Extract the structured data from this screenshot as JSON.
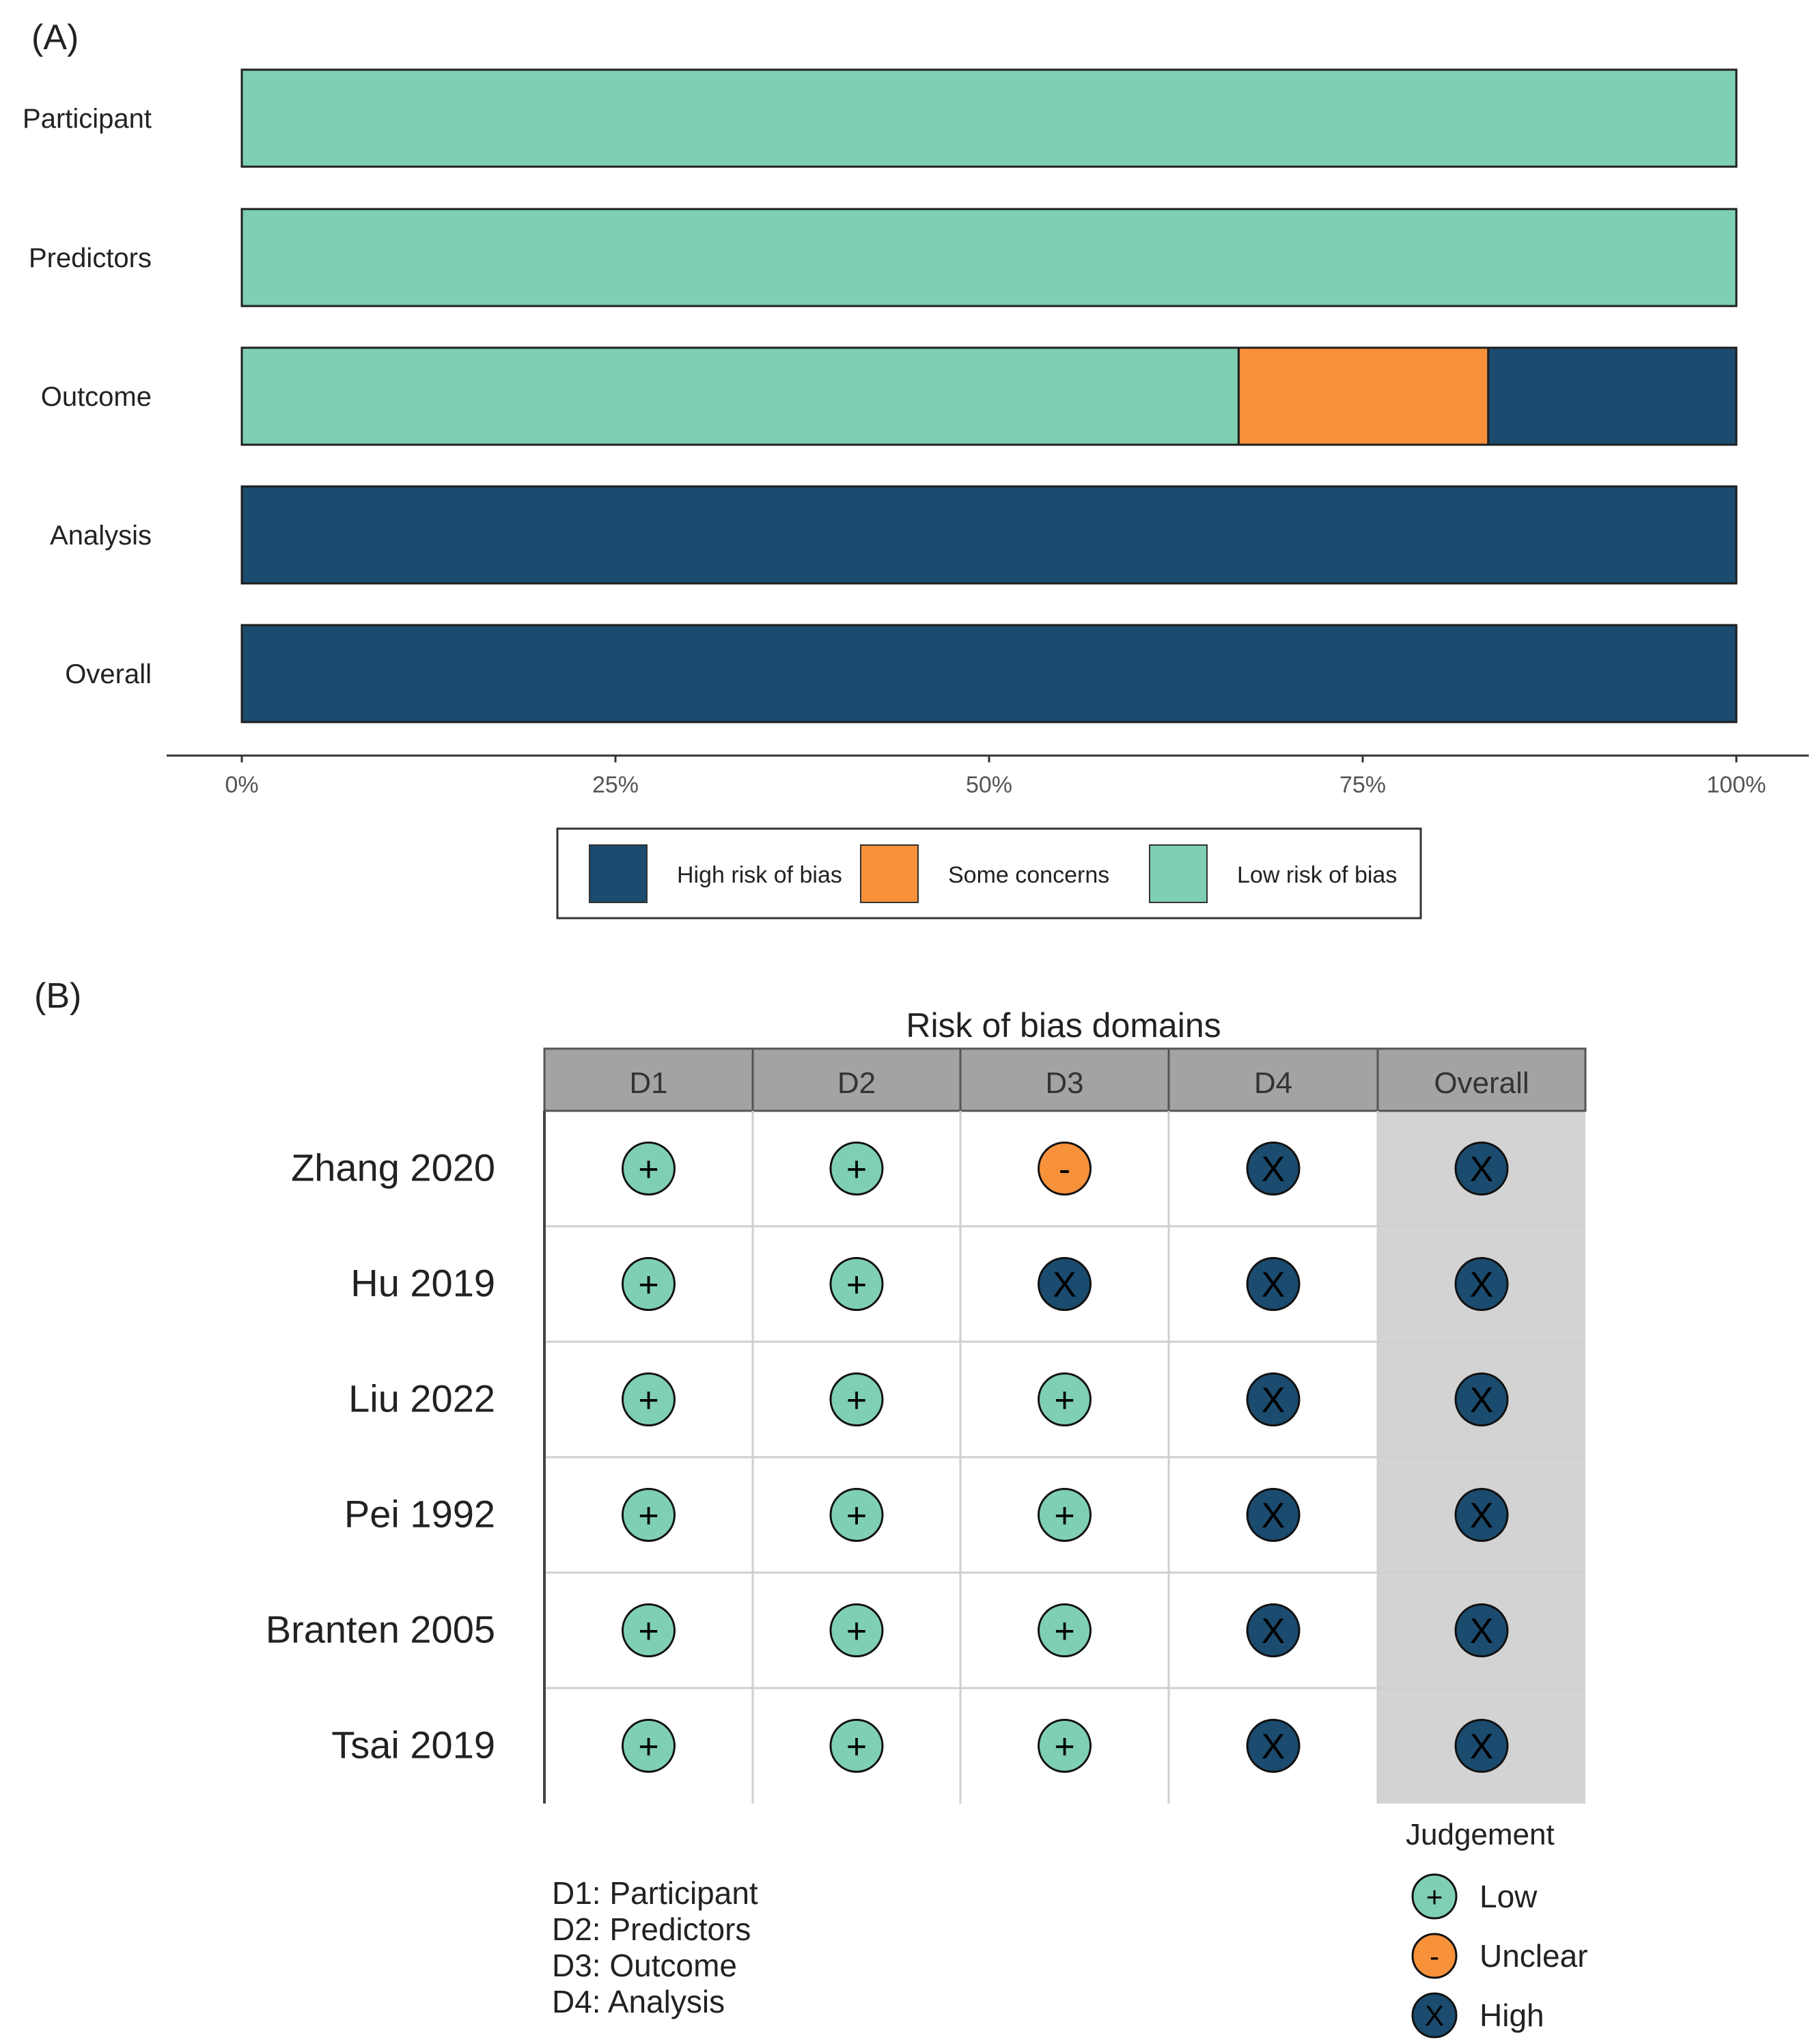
{
  "colors": {
    "high": "#1b4b6e",
    "concerns": "#f7913a",
    "low": "#7fcfb2",
    "header_bg": "#a3a3a3",
    "overall_bg": "#d3d3d3",
    "grid_line": "#cfcfcf",
    "text": "#222222"
  },
  "chart_data": [
    {
      "panel_label": "(A)",
      "type": "bar",
      "orientation": "horizontal",
      "stacked": true,
      "categories": [
        "Participant",
        "Predictors",
        "Outcome",
        "Analysis",
        "Overall"
      ],
      "series": [
        {
          "name": "Low risk of bias",
          "key": "low",
          "values": [
            100,
            100,
            66.7,
            0,
            0
          ]
        },
        {
          "name": "Some concerns",
          "key": "concerns",
          "values": [
            0,
            0,
            16.7,
            0,
            0
          ]
        },
        {
          "name": "High risk of bias",
          "key": "high",
          "values": [
            0,
            0,
            16.6,
            100,
            100
          ]
        }
      ],
      "xlim": [
        0,
        100
      ],
      "xticks": [
        "0%",
        "25%",
        "50%",
        "75%",
        "100%"
      ],
      "legend": {
        "position": "bottom",
        "items": [
          {
            "label": "High risk of bias",
            "key": "high"
          },
          {
            "label": "Some concerns",
            "key": "concerns"
          },
          {
            "label": "Low risk of bias",
            "key": "low"
          }
        ]
      }
    },
    {
      "panel_label": "(B)",
      "type": "table",
      "title": "Risk of bias domains",
      "columns": [
        "D1",
        "D2",
        "D3",
        "D4",
        "Overall"
      ],
      "rows": [
        {
          "study": "Zhang 2020",
          "judgements": [
            "low",
            "low",
            "unclear",
            "high",
            "high"
          ]
        },
        {
          "study": "Hu 2019",
          "judgements": [
            "low",
            "low",
            "high",
            "high",
            "high"
          ]
        },
        {
          "study": "Liu 2022",
          "judgements": [
            "low",
            "low",
            "low",
            "high",
            "high"
          ]
        },
        {
          "study": "Pei 1992",
          "judgements": [
            "low",
            "low",
            "low",
            "high",
            "high"
          ]
        },
        {
          "study": "Branten 2005",
          "judgements": [
            "low",
            "low",
            "low",
            "high",
            "high"
          ]
        },
        {
          "study": "Tsai 2019",
          "judgements": [
            "low",
            "low",
            "low",
            "high",
            "high"
          ]
        }
      ],
      "symbols": {
        "low": "+",
        "unclear": "-",
        "high": "X"
      },
      "domain_key": [
        "D1: Participant",
        "D2: Predictors",
        "D3: Outcome",
        "D4: Analysis"
      ],
      "legend": {
        "title": "Judgement",
        "items": [
          {
            "key": "low",
            "label": "Low"
          },
          {
            "key": "unclear",
            "label": "Unclear"
          },
          {
            "key": "high",
            "label": "High"
          }
        ]
      }
    }
  ]
}
